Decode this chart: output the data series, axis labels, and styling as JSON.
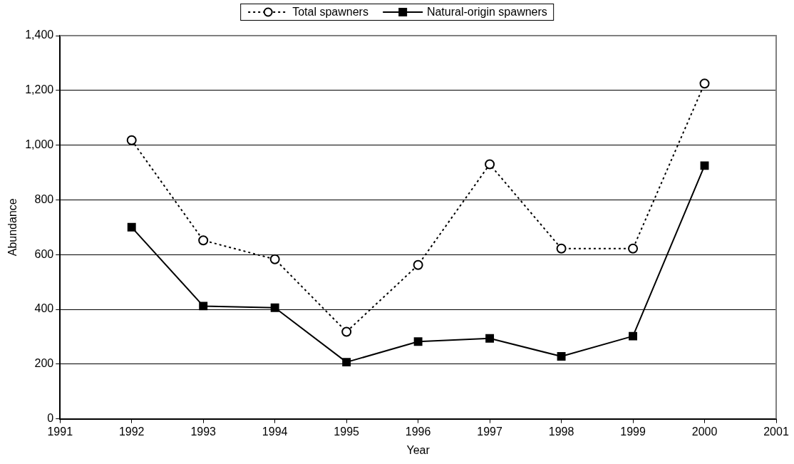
{
  "chart_data": {
    "type": "line",
    "xlabel": "Year",
    "ylabel": "Abundance",
    "x": [
      1992,
      1993,
      1994,
      1995,
      1996,
      1997,
      1998,
      1999,
      2000
    ],
    "series": [
      {
        "name": "Total spawners",
        "color": "#000000",
        "marker": "circle",
        "line_style": "dotted",
        "values": [
          1018,
          652,
          583,
          318,
          562,
          930,
          622,
          622,
          1225
        ]
      },
      {
        "name": "Natural-origin spawners",
        "color": "#000000",
        "marker": "square",
        "line_style": "solid",
        "values": [
          700,
          412,
          406,
          207,
          282,
          294,
          228,
          302,
          925
        ]
      }
    ],
    "xlim": [
      1991,
      2001
    ],
    "xticks": [
      1991,
      1992,
      1993,
      1994,
      1995,
      1996,
      1997,
      1998,
      1999,
      2000,
      2001
    ],
    "ylim": [
      0,
      1400
    ],
    "yticks": [
      0,
      200,
      400,
      600,
      800,
      {
        "value": 1000,
        "label": "1,000"
      },
      {
        "value": 1200,
        "label": "1,200"
      },
      {
        "value": 1400,
        "label": "1,400"
      }
    ],
    "grid": "y",
    "legend": "top"
  }
}
